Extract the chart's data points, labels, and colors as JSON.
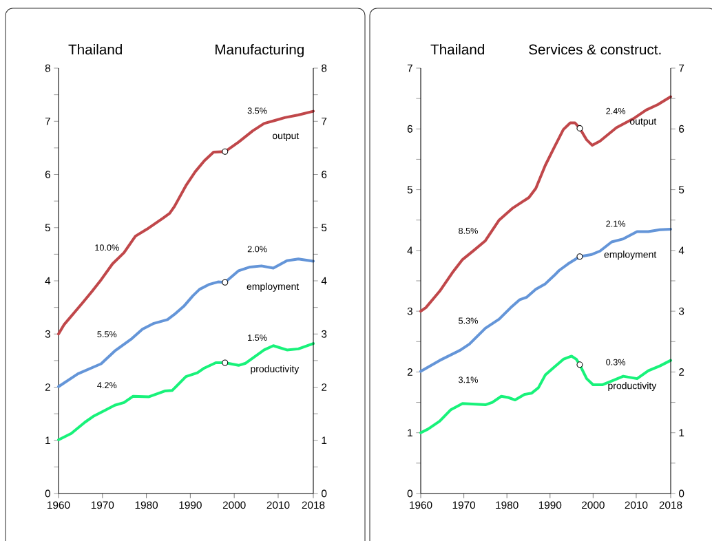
{
  "chart_data": [
    {
      "type": "line",
      "title": "Thailand",
      "subtitle": "Manufacturing",
      "xlim": [
        1960,
        2018
      ],
      "xticks": [
        1960,
        1970,
        1980,
        1990,
        2000,
        2010,
        2018
      ],
      "ylim": [
        0,
        8
      ],
      "yticks": [
        0,
        {
          "value": 0.5,
          "label": null
        },
        1,
        {
          "value": 1.5,
          "label": null
        },
        2,
        {
          "value": 2.5,
          "label": null
        },
        3,
        {
          "value": 3.5,
          "label": null
        },
        4,
        {
          "value": 4.5,
          "label": null
        },
        5,
        {
          "value": 5.5,
          "label": null
        },
        6,
        {
          "value": 6.5,
          "label": null
        },
        7,
        {
          "value": 7.5,
          "label": null
        },
        8
      ],
      "y2lim": [
        0,
        8
      ],
      "y2ticks": [
        0,
        {
          "value": 0.5,
          "label": null
        },
        1,
        {
          "value": 1.5,
          "label": null
        },
        2,
        {
          "value": 2.5,
          "label": null
        },
        3,
        {
          "value": 3.5,
          "label": null
        },
        4,
        {
          "value": 4.5,
          "label": null
        },
        5,
        {
          "value": 5.5,
          "label": null
        },
        6,
        {
          "value": 6.5,
          "label": null
        },
        7,
        {
          "value": 7.5,
          "label": null
        },
        8
      ],
      "series": [
        {
          "name": "output",
          "color": "#c0474a",
          "x": [
            1960,
            1961.3,
            1965.5,
            1967.6,
            1969.7,
            1972.3,
            1974.9,
            1977.5,
            1980.1,
            1983.8,
            1985.3,
            1986.4,
            1989.0,
            1991.1,
            1993.2,
            1995.3,
            1997.9,
            2001.0,
            2004.2,
            2006.8,
            2009.4,
            2011.5,
            2014.6,
            2018
          ],
          "values": [
            3.0,
            3.18,
            3.59,
            3.8,
            4.02,
            4.32,
            4.53,
            4.84,
            4.97,
            5.18,
            5.27,
            5.4,
            5.79,
            6.05,
            6.26,
            6.42,
            6.43,
            6.61,
            6.82,
            6.96,
            7.02,
            7.07,
            7.12,
            7.19
          ]
        },
        {
          "name": "employment",
          "color": "#6495d8",
          "x": [
            1960,
            1964.4,
            1969.7,
            1972.8,
            1976.5,
            1979.1,
            1981.7,
            1984.8,
            1986.4,
            1988.5,
            1990.6,
            1992.1,
            1994.2,
            1996.3,
            1997.9,
            2001.0,
            2003.6,
            2006.2,
            2008.9,
            2012.0,
            2014.6,
            2018
          ],
          "values": [
            2.01,
            2.25,
            2.44,
            2.68,
            2.9,
            3.09,
            3.2,
            3.27,
            3.37,
            3.52,
            3.72,
            3.84,
            3.93,
            3.98,
            3.97,
            4.19,
            4.26,
            4.28,
            4.24,
            4.38,
            4.41,
            4.37
          ]
        },
        {
          "name": "productivity",
          "color": "#18f27a",
          "x": [
            1960,
            1962.9,
            1966.0,
            1968.1,
            1970.7,
            1972.8,
            1974.9,
            1977.0,
            1980.6,
            1984.3,
            1985.9,
            1989.0,
            1991.6,
            1993.2,
            1995.8,
            1997.9,
            2001.0,
            2002.6,
            2006.8,
            2008.9,
            2012.0,
            2014.6,
            2018
          ],
          "values": [
            1.01,
            1.13,
            1.34,
            1.46,
            1.57,
            1.66,
            1.71,
            1.83,
            1.82,
            1.93,
            1.94,
            2.2,
            2.27,
            2.36,
            2.46,
            2.46,
            2.41,
            2.45,
            2.7,
            2.78,
            2.7,
            2.72,
            2.82
          ]
        },
        {
          "type": "scatter",
          "marker": "circle",
          "color": "#ffffff",
          "x": [
            1997.9,
            1997.9,
            1997.9
          ],
          "values": [
            6.43,
            3.97,
            2.46
          ]
        }
      ],
      "annotations": [
        "3.5%",
        "10.0%",
        "2.0%",
        "5.5%",
        "1.5%",
        "4.2%"
      ]
    },
    {
      "type": "line",
      "title": "Thailand",
      "subtitle": "Services & construct.",
      "xlim": [
        1960,
        2018
      ],
      "xticks": [
        1960,
        1970,
        1980,
        1990,
        2000,
        2010,
        2018
      ],
      "ylim": [
        0,
        7
      ],
      "yticks": [
        0,
        {
          "value": 0.5,
          "label": null
        },
        1,
        {
          "value": 1.5,
          "label": null
        },
        2,
        {
          "value": 2.5,
          "label": null
        },
        3,
        {
          "value": 3.5,
          "label": null
        },
        4,
        {
          "value": 4.5,
          "label": null
        },
        5,
        {
          "value": 5.5,
          "label": null
        },
        6,
        {
          "value": 6.5,
          "label": null
        },
        7
      ],
      "y2lim": [
        0,
        7
      ],
      "y2ticks": [
        0,
        {
          "value": 0.5,
          "label": null
        },
        1,
        {
          "value": 1.5,
          "label": null
        },
        2,
        {
          "value": 2.5,
          "label": null
        },
        3,
        {
          "value": 3.5,
          "label": null
        },
        4,
        {
          "value": 4.5,
          "label": null
        },
        5,
        {
          "value": 5.5,
          "label": null
        },
        6,
        {
          "value": 6.5,
          "label": null
        },
        7
      ],
      "series": [
        {
          "name": "output",
          "color": "#c0474a",
          "x": [
            1960,
            1961.2,
            1964.4,
            1967.3,
            1969.7,
            1972.3,
            1975.0,
            1978.2,
            1981.4,
            1985.1,
            1986.7,
            1988.9,
            1991.0,
            1993.1,
            1994.7,
            1995.8,
            1996.9,
            1998.5,
            1999.8,
            2001.6,
            2005.4,
            2007.5,
            2009.6,
            2012.3,
            2015.0,
            2018
          ],
          "values": [
            3.0,
            3.06,
            3.33,
            3.63,
            3.85,
            4.0,
            4.16,
            4.5,
            4.7,
            4.87,
            5.02,
            5.4,
            5.7,
            5.99,
            6.1,
            6.1,
            6.01,
            5.82,
            5.73,
            5.8,
            6.02,
            6.1,
            6.18,
            6.31,
            6.4,
            6.53
          ]
        },
        {
          "name": "employment",
          "color": "#6495d8",
          "x": [
            1960,
            1964.4,
            1969.2,
            1971.3,
            1975.0,
            1978.2,
            1980.9,
            1983.0,
            1984.6,
            1986.7,
            1988.9,
            1991.0,
            1992.1,
            1994.2,
            1996.9,
            1999.5,
            2001.6,
            2004.3,
            2007.0,
            2010.2,
            2012.8,
            2015.5,
            2018
          ],
          "values": [
            2.01,
            2.19,
            2.36,
            2.46,
            2.72,
            2.87,
            3.06,
            3.19,
            3.23,
            3.36,
            3.45,
            3.59,
            3.67,
            3.78,
            3.9,
            3.93,
            3.99,
            4.14,
            4.19,
            4.31,
            4.31,
            4.34,
            4.35
          ]
        },
        {
          "name": "productivity",
          "color": "#18f27a",
          "x": [
            1960,
            1961.7,
            1964.4,
            1967.0,
            1969.7,
            1975.0,
            1976.6,
            1978.7,
            1980.3,
            1981.9,
            1984.1,
            1985.7,
            1987.3,
            1988.9,
            1991.0,
            1993.1,
            1995.0,
            1996.1,
            1996.9,
            1998.5,
            2000.0,
            2002.2,
            2004.3,
            2007.0,
            2010.2,
            2012.8,
            2015.5,
            2018
          ],
          "values": [
            1.0,
            1.06,
            1.19,
            1.38,
            1.48,
            1.46,
            1.5,
            1.6,
            1.58,
            1.54,
            1.63,
            1.65,
            1.74,
            1.95,
            2.08,
            2.21,
            2.26,
            2.21,
            2.12,
            1.89,
            1.79,
            1.79,
            1.85,
            1.93,
            1.89,
            2.02,
            2.1,
            2.19
          ]
        },
        {
          "type": "scatter",
          "marker": "circle",
          "color": "#ffffff",
          "x": [
            1996.9,
            1996.9,
            1996.9
          ],
          "values": [
            6.01,
            3.9,
            2.12
          ]
        }
      ],
      "annotations": [
        "2.4%",
        "8.5%",
        "2.1%",
        "5.3%",
        "0.3%",
        "3.1%"
      ]
    }
  ]
}
